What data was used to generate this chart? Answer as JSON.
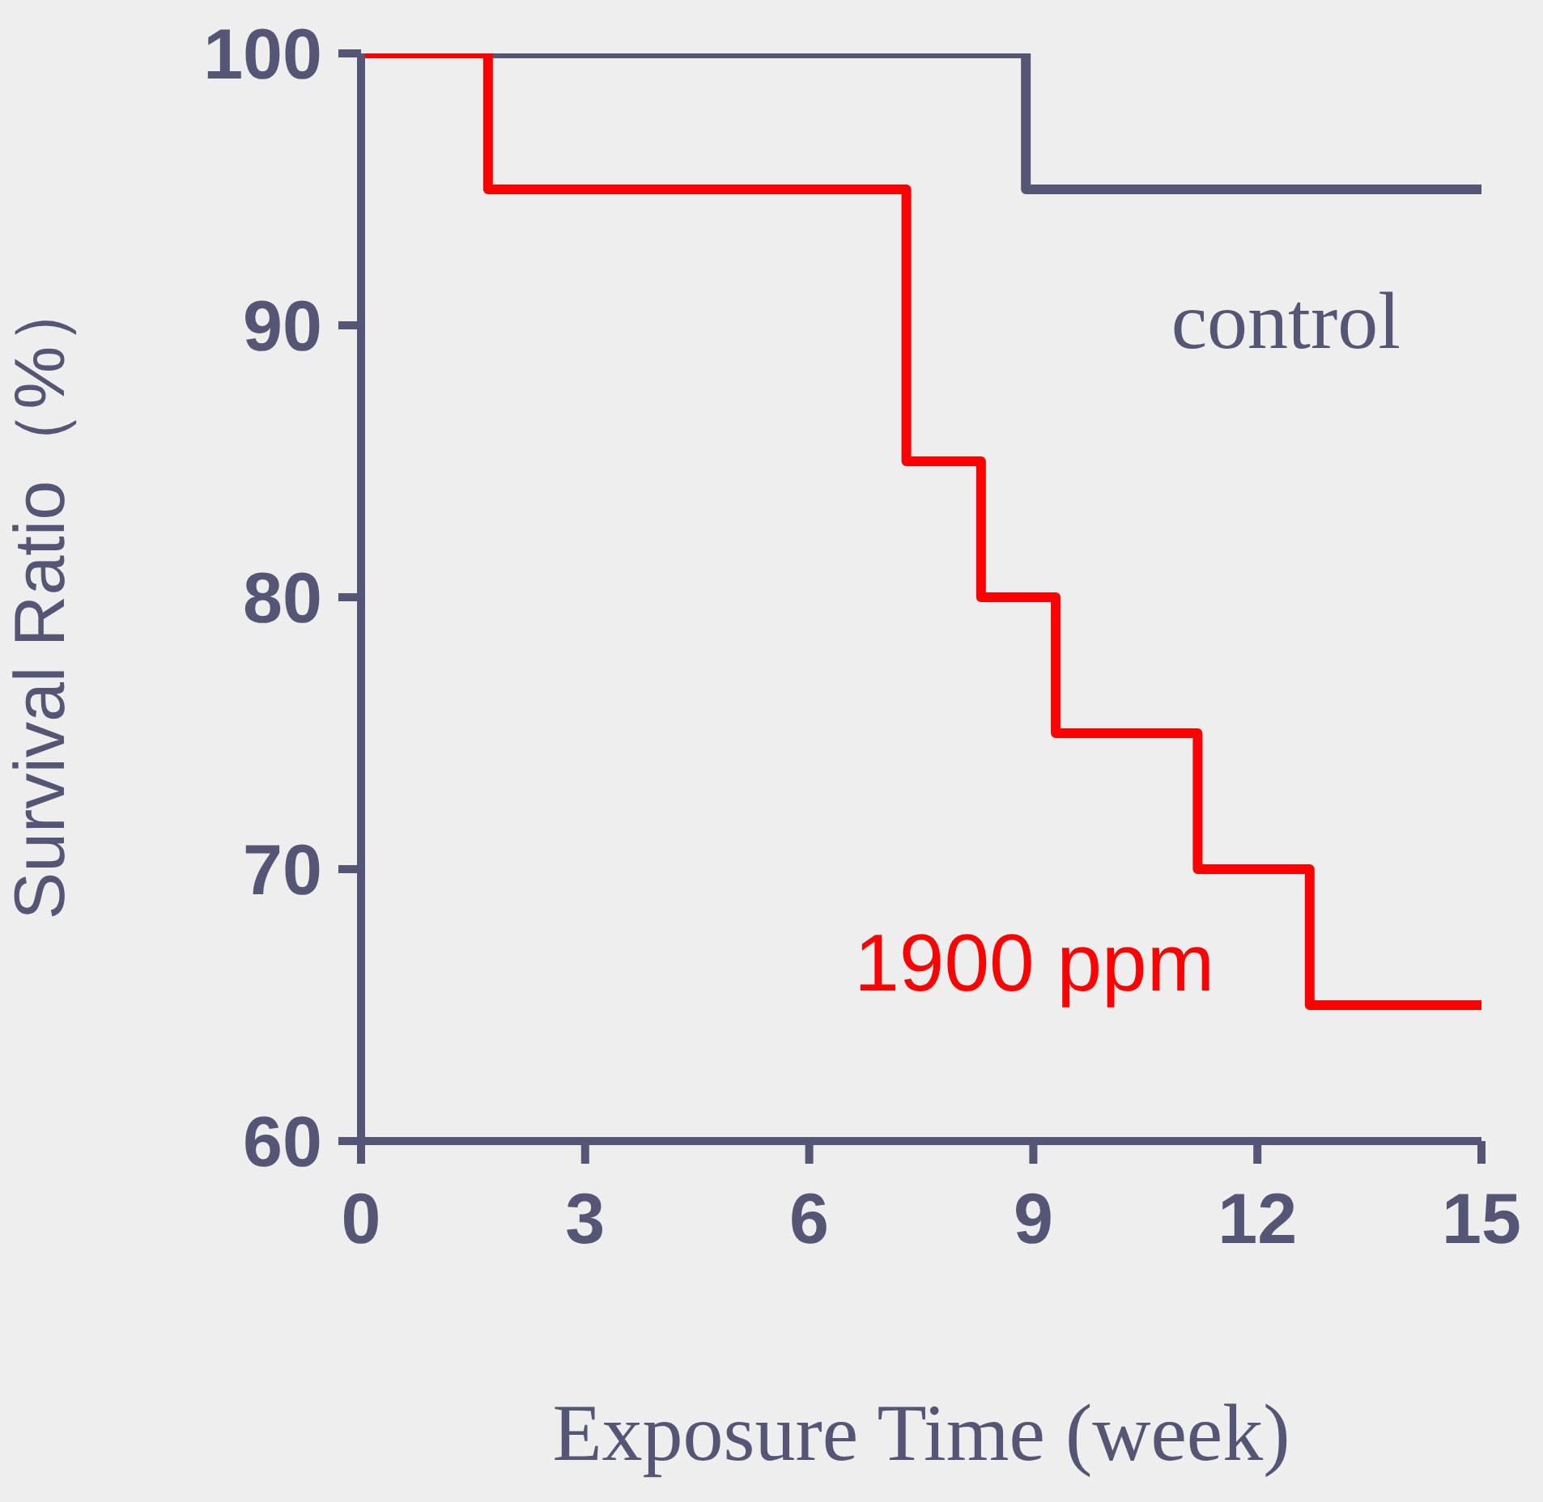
{
  "chart_data": {
    "type": "step",
    "xlabel": "Exposure Time (week)",
    "ylabel": "Survival Ratio（%）",
    "xlim": [
      0,
      15
    ],
    "xticks": [
      0,
      3,
      6,
      9,
      12,
      15
    ],
    "ylim": [
      60,
      100
    ],
    "yticks": [
      60,
      70,
      80,
      90,
      100
    ],
    "grid": false,
    "series": [
      {
        "name": "control",
        "color": "#555575",
        "x": [
          0,
          8.9,
          15
        ],
        "values": [
          100,
          95,
          95
        ]
      },
      {
        "name": "1900 ppm",
        "color": "#ff0000",
        "x": [
          0,
          1.7,
          7.3,
          8.3,
          9.3,
          11.2,
          12.7,
          15
        ],
        "values": [
          100,
          95,
          85,
          80,
          75,
          70,
          65,
          65
        ]
      }
    ]
  }
}
